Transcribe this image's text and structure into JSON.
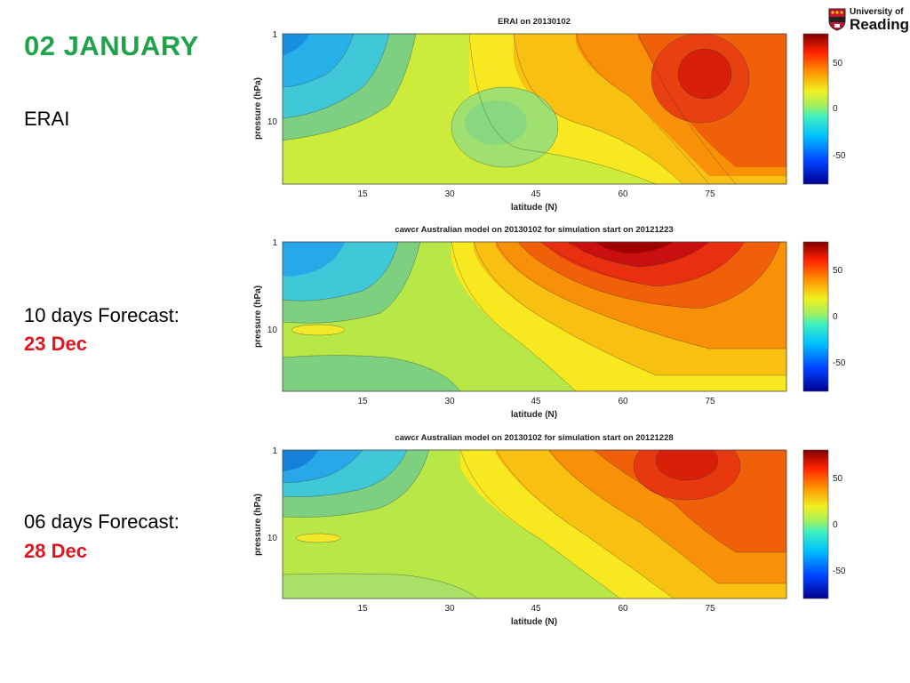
{
  "slide": {
    "title": "02  JANUARY",
    "labels": [
      {
        "text": "ERAI",
        "highlight": ""
      },
      {
        "text": "10 days Forecast:",
        "highlight": "23 Dec"
      },
      {
        "text": "06 days Forecast:",
        "highlight": "28 Dec"
      }
    ],
    "title_color": "#1fa34a",
    "highlight_color": "#e0141e"
  },
  "logo": {
    "line1": "University of",
    "line2": "Reading",
    "icon": "university-shield-icon"
  },
  "chart_data": [
    {
      "type": "heatmap",
      "title": "ERAI on 20130102",
      "xlabel": "latitude (N)",
      "ylabel": "pressure (hPa)",
      "xticks": [
        15,
        30,
        45,
        60,
        75
      ],
      "yticks": [
        1,
        10
      ],
      "y_scale": "log",
      "colorbar_ticks": [
        50,
        0,
        -50
      ],
      "colorbar_range": [
        -80,
        80
      ],
      "features": [
        {
          "x": 75,
          "y": 1.7,
          "value": 60
        },
        {
          "x": 5,
          "y": 2,
          "value": -30
        },
        {
          "x": 38,
          "y": 7,
          "value": 5
        }
      ]
    },
    {
      "type": "heatmap",
      "title": "cawcr Australian model on 20130102 for simulation start on 20121223",
      "xlabel": "latitude (N)",
      "ylabel": "pressure (hPa)",
      "xticks": [
        15,
        30,
        45,
        60,
        75
      ],
      "yticks": [
        1,
        10
      ],
      "y_scale": "log",
      "colorbar_ticks": [
        50,
        0,
        -50
      ],
      "colorbar_range": [
        -80,
        80
      ],
      "features": [
        {
          "x": 58,
          "y": 1,
          "value": 75
        },
        {
          "x": 5,
          "y": 2,
          "value": -30
        },
        {
          "x": 10,
          "y": 10,
          "value": 22
        }
      ]
    },
    {
      "type": "heatmap",
      "title": "cawcr Australian model on 20130102 for simulation start on 20121228",
      "xlabel": "latitude (N)",
      "ylabel": "pressure (hPa)",
      "xticks": [
        15,
        30,
        45,
        60,
        75
      ],
      "yticks": [
        1,
        10
      ],
      "y_scale": "log",
      "colorbar_ticks": [
        50,
        0,
        -50
      ],
      "colorbar_range": [
        -80,
        80
      ],
      "features": [
        {
          "x": 70,
          "y": 1.4,
          "value": 60
        },
        {
          "x": 4,
          "y": 2,
          "value": -35
        },
        {
          "x": 10,
          "y": 10,
          "value": 20
        }
      ]
    }
  ]
}
